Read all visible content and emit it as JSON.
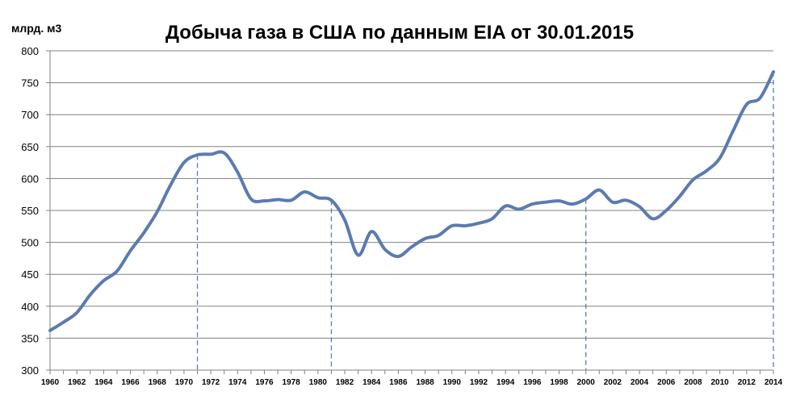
{
  "chart_data": {
    "type": "line",
    "title": "Добыча газа в США по данным EIA от 30.01.2015",
    "ylabel": "млрд. м3",
    "xlabel": "",
    "xlim": [
      1960,
      2014
    ],
    "ylim": [
      300,
      800
    ],
    "yticks": [
      300,
      350,
      400,
      450,
      500,
      550,
      600,
      650,
      700,
      750,
      800
    ],
    "xticks": [
      1960,
      1962,
      1964,
      1966,
      1968,
      1970,
      1972,
      1974,
      1976,
      1978,
      1980,
      1982,
      1984,
      1986,
      1988,
      1990,
      1992,
      1994,
      1996,
      1998,
      2000,
      2002,
      2004,
      2006,
      2008,
      2010,
      2012,
      2014
    ],
    "grid": true,
    "line_color": "#5b7bb0",
    "gridline_color": "#808080",
    "vertical_marker_years": [
      1971,
      1981,
      2000,
      2014
    ],
    "series": [
      {
        "x": [
          1960,
          1961,
          1962,
          1963,
          1964,
          1965,
          1966,
          1967,
          1968,
          1969,
          1970,
          1971,
          1972,
          1973,
          1974,
          1975,
          1976,
          1977,
          1978,
          1979,
          1980,
          1981,
          1982,
          1983,
          1984,
          1985,
          1986,
          1987,
          1988,
          1989,
          1990,
          1991,
          1992,
          1993,
          1994,
          1995,
          1996,
          1997,
          1998,
          1999,
          2000,
          2001,
          2002,
          2003,
          2004,
          2005,
          2006,
          2007,
          2008,
          2009,
          2010,
          2011,
          2012,
          2013,
          2014
        ],
        "values": [
          362,
          375,
          390,
          418,
          440,
          455,
          487,
          515,
          548,
          590,
          625,
          637,
          638,
          640,
          610,
          568,
          565,
          567,
          566,
          579,
          570,
          566,
          535,
          480,
          517,
          489,
          478,
          493,
          506,
          511,
          526,
          526,
          530,
          537,
          557,
          552,
          560,
          563,
          565,
          560,
          568,
          582,
          563,
          566,
          556,
          537,
          550,
          572,
          598,
          612,
          632,
          675,
          716,
          726,
          767
        ]
      }
    ]
  }
}
